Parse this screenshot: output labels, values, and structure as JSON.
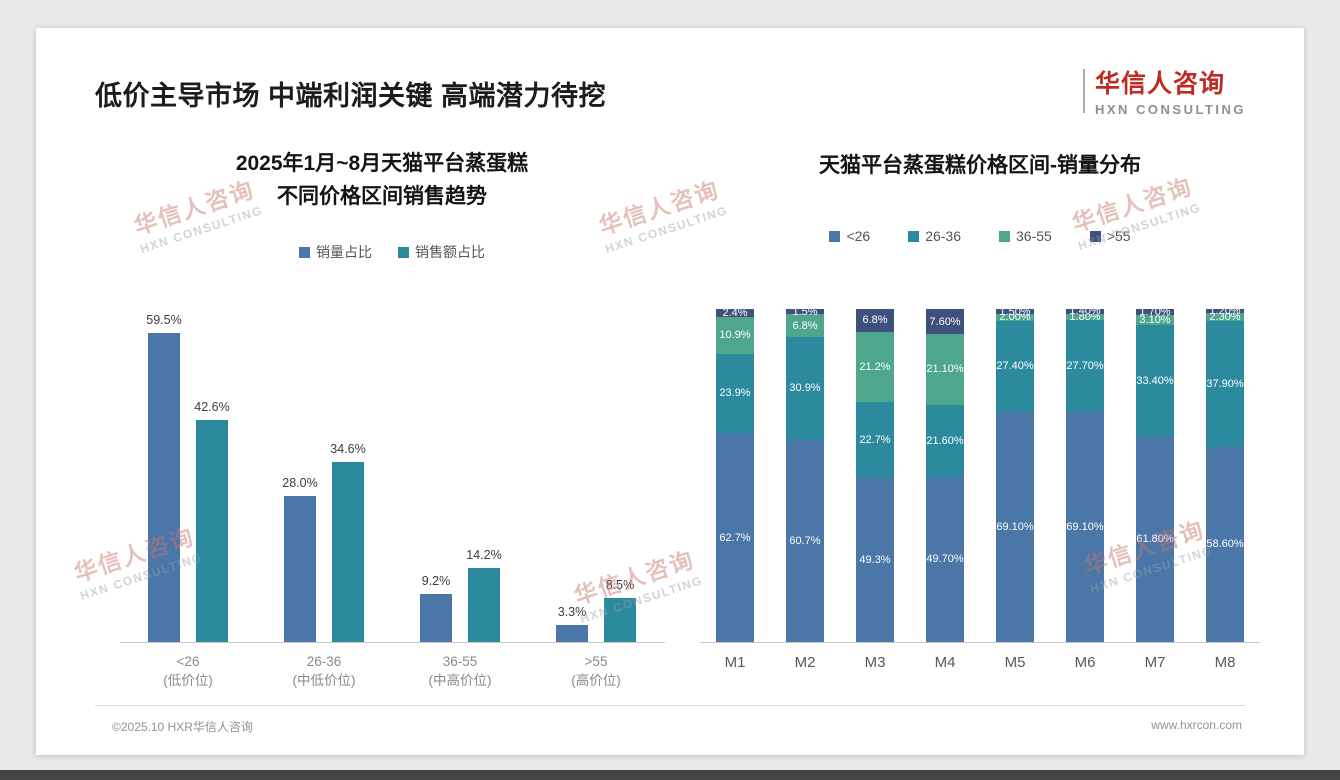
{
  "slide": {
    "title": "低价主导市场 中端利润关键 高端潜力待挖",
    "logo": {
      "name": "华信人咨询",
      "tagline": "HXN CONSULTING"
    },
    "watermark": {
      "line1": "华信人咨询",
      "line2": "HXN CONSULTING"
    },
    "footer": {
      "copyright": "©2025.10 HXR华信人咨询",
      "website": "www.hxrcon.com"
    }
  },
  "colors": {
    "series_blue": "#4a76a8",
    "series_teal": "#2b8a9e",
    "series_green": "#4ea68c",
    "series_navy": "#40507e",
    "logo_red": "#bf2b22"
  },
  "chart_data": [
    {
      "type": "bar",
      "stacked": false,
      "title": "2025年1月~8月天猫平台蒸蛋糕\n不同价格区间销售趋势",
      "categories": [
        "<26\n(低价位)",
        "26-36\n(中低价位)",
        "36-55\n(中高价位)",
        ">55\n(高价位)"
      ],
      "series": [
        {
          "name": "销量占比",
          "color": "#4a76a8",
          "values": [
            59.5,
            28.0,
            9.2,
            3.3
          ],
          "labels": [
            "59.5%",
            "28.0%",
            "9.2%",
            "3.3%"
          ]
        },
        {
          "name": "销售额占比",
          "color": "#2b8a9e",
          "values": [
            42.6,
            34.6,
            14.2,
            8.5
          ],
          "labels": [
            "42.6%",
            "34.6%",
            "14.2%",
            "8.5%"
          ]
        }
      ],
      "xlabel": "",
      "ylabel": "",
      "ylim": [
        0,
        70
      ],
      "grid": false,
      "legend_position": "top",
      "value_labels": true
    },
    {
      "type": "bar",
      "stacked": true,
      "title": "天猫平台蒸蛋糕价格区间-销量分布",
      "categories": [
        "M1",
        "M2",
        "M3",
        "M4",
        "M5",
        "M6",
        "M7",
        "M8"
      ],
      "series": [
        {
          "name": "<26",
          "color": "#4a76a8",
          "values": [
            62.7,
            60.7,
            49.3,
            49.7,
            69.1,
            69.1,
            61.8,
            58.6
          ],
          "labels": [
            "62.7%",
            "60.7%",
            "49.3%",
            "49.70%",
            "69.10%",
            "69.10%",
            "61.80%",
            "58.60%"
          ]
        },
        {
          "name": "26-36",
          "color": "#2b8a9e",
          "values": [
            23.9,
            30.9,
            22.7,
            21.6,
            27.4,
            27.7,
            33.4,
            37.9
          ],
          "labels": [
            "23.9%",
            "30.9%",
            "22.7%",
            "21.60%",
            "27.40%",
            "27.70%",
            "33.40%",
            "37.90%"
          ]
        },
        {
          "name": "36-55",
          "color": "#4ea68c",
          "values": [
            10.9,
            6.8,
            21.2,
            21.1,
            2.0,
            1.8,
            3.1,
            2.3
          ],
          "labels": [
            "10.9%",
            "6.8%",
            "21.2%",
            "21.10%",
            "2.00%",
            "1.80%",
            "3.10%",
            "2.30%"
          ]
        },
        {
          "name": ">55",
          "color": "#40507e",
          "values": [
            2.4,
            1.5,
            6.8,
            7.6,
            1.5,
            1.4,
            1.7,
            1.2
          ],
          "labels": [
            "2.4%",
            "1.5%",
            "6.8%",
            "7.60%",
            "1.50%",
            "1.40%",
            "1.70%",
            "1.20%"
          ]
        }
      ],
      "xlabel": "",
      "ylabel": "",
      "ylim": [
        0,
        100
      ],
      "grid": false,
      "legend_position": "top",
      "value_labels": true
    }
  ]
}
